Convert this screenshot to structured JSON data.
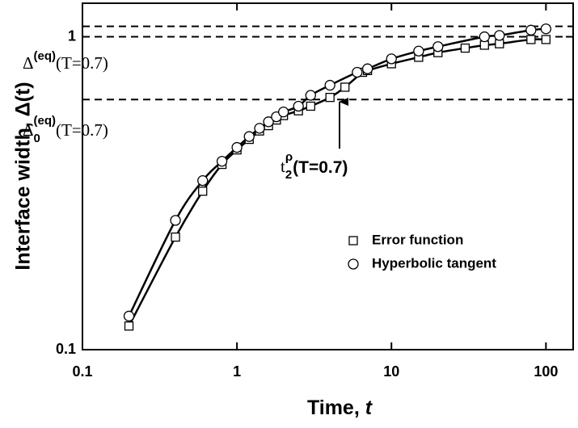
{
  "chart_data": {
    "type": "scatter",
    "x_label": {
      "text": "Time, ",
      "italic": "t"
    },
    "y_label": "Interface width, Δ(t)",
    "xlog": true,
    "ylog": true,
    "xlim": [
      0.1,
      150
    ],
    "ylim": [
      0.1,
      1.28
    ],
    "xticks": [
      0.1,
      1,
      10,
      100
    ],
    "yticks": [
      0.1,
      1
    ],
    "hlines": [
      1.08,
      1.0,
      0.63
    ],
    "annotations": [
      {
        "base": "Δ",
        "sup": "(eq)",
        "text": "(T=0.7)"
      },
      {
        "base": "Δ",
        "sub": "0",
        "sup": "(eq)",
        "text": "(T=0.7)"
      },
      {
        "base": "t",
        "sub": "2",
        "sup": "ρ",
        "text": "(T=0.7)"
      }
    ],
    "series": [
      {
        "name": "Error function",
        "marker": "square",
        "color": "#000000",
        "x": [
          0.2,
          0.4,
          0.6,
          0.8,
          1,
          1.2,
          1.4,
          1.6,
          1.8,
          2,
          2.5,
          3,
          4,
          5,
          6.5,
          7,
          10,
          15,
          20,
          30,
          40,
          50,
          80,
          100
        ],
        "values": [
          0.119,
          0.229,
          0.321,
          0.391,
          0.435,
          0.47,
          0.5,
          0.52,
          0.542,
          0.56,
          0.58,
          0.6,
          0.64,
          0.69,
          0.77,
          0.78,
          0.82,
          0.86,
          0.89,
          0.92,
          0.94,
          0.95,
          0.98,
          0.98
        ]
      },
      {
        "name": "Hyperbolic tangent",
        "marker": "circle",
        "color": "#000000",
        "x": [
          0.2,
          0.4,
          0.6,
          0.8,
          1,
          1.2,
          1.4,
          1.6,
          1.8,
          2,
          2.5,
          3,
          4,
          6,
          7,
          10,
          15,
          20,
          40,
          50,
          80,
          100
        ],
        "values": [
          0.128,
          0.259,
          0.347,
          0.4,
          0.443,
          0.48,
          0.51,
          0.535,
          0.555,
          0.575,
          0.6,
          0.65,
          0.7,
          0.77,
          0.79,
          0.85,
          0.9,
          0.93,
          1.0,
          1.01,
          1.05,
          1.06
        ]
      }
    ]
  }
}
